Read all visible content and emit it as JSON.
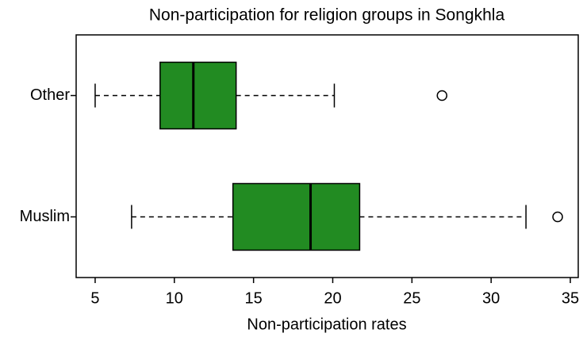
{
  "chart_data": {
    "type": "boxplot",
    "orientation": "horizontal",
    "title": "Non-participation for religion groups in Songkhla",
    "x_label": "Non-participation rates",
    "categories": [
      "Muslim",
      "Other"
    ],
    "color": "#228b22",
    "boxes": [
      {
        "whisker_low": 7.3,
        "q1": 13.7,
        "median": 18.6,
        "q3": 21.7,
        "whisker_high": 32.2,
        "outliers": [
          34.2
        ]
      },
      {
        "whisker_low": 5.0,
        "q1": 9.1,
        "median": 11.2,
        "q3": 13.9,
        "whisker_high": 20.1,
        "outliers": [
          26.9
        ]
      }
    ],
    "xlim": [
      3.8,
      35.5
    ],
    "xticks": [
      5,
      10,
      15,
      20,
      25,
      30,
      35
    ]
  }
}
